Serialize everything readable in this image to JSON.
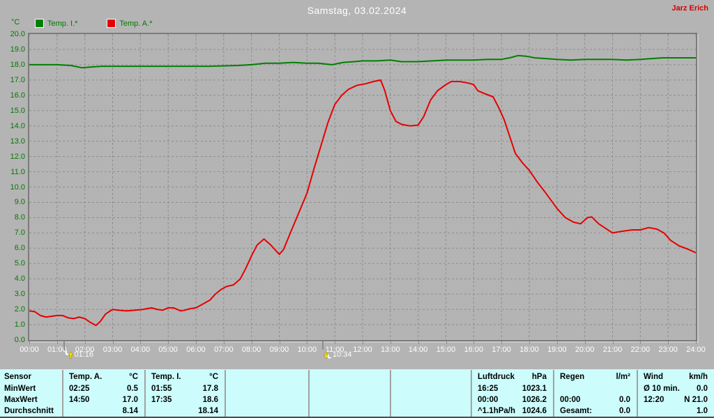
{
  "header": {
    "watermark": "Jarz Erich"
  },
  "chart_data": {
    "type": "line",
    "title": "Samstag, 03.02.2024",
    "xlabel": "",
    "ylabel": "°C",
    "ylim": [
      0,
      20
    ],
    "xlim_hours": [
      0,
      24
    ],
    "grid": "dashed",
    "legend_position": "top-left",
    "y_ticks": [
      "20.0",
      "19.0",
      "18.0",
      "17.0",
      "16.0",
      "15.0",
      "14.0",
      "13.0",
      "12.0",
      "11.0",
      "10.0",
      "9.0",
      "8.0",
      "7.0",
      "6.0",
      "5.0",
      "4.0",
      "3.0",
      "2.0",
      "1.0",
      "0.0"
    ],
    "x_ticks": [
      "00:00",
      "01:00",
      "02:00",
      "03:00",
      "04:00",
      "05:00",
      "06:00",
      "07:00",
      "08:00",
      "09:00",
      "10:00",
      "11:00",
      "12:00",
      "13:00",
      "14:00",
      "15:00",
      "16:00",
      "17:00",
      "18:00",
      "19:00",
      "20:00",
      "21:00",
      "22:00",
      "23:00",
      "24:00"
    ],
    "series": [
      {
        "name": "Temp. I.*",
        "color": "#008000",
        "points": [
          [
            0,
            18.0
          ],
          [
            0.5,
            18.0
          ],
          [
            1.0,
            18.0
          ],
          [
            1.5,
            17.95
          ],
          [
            1.9,
            17.8
          ],
          [
            2.2,
            17.85
          ],
          [
            2.6,
            17.9
          ],
          [
            3.5,
            17.9
          ],
          [
            4.5,
            17.9
          ],
          [
            5.5,
            17.9
          ],
          [
            6.5,
            17.9
          ],
          [
            7.5,
            17.95
          ],
          [
            8.0,
            18.0
          ],
          [
            8.5,
            18.1
          ],
          [
            9.0,
            18.1
          ],
          [
            9.5,
            18.15
          ],
          [
            10.0,
            18.1
          ],
          [
            10.4,
            18.1
          ],
          [
            10.9,
            18.0
          ],
          [
            11.3,
            18.15
          ],
          [
            11.7,
            18.2
          ],
          [
            12.0,
            18.25
          ],
          [
            12.5,
            18.25
          ],
          [
            13.0,
            18.3
          ],
          [
            13.4,
            18.2
          ],
          [
            14.0,
            18.2
          ],
          [
            14.5,
            18.25
          ],
          [
            15.0,
            18.3
          ],
          [
            15.5,
            18.3
          ],
          [
            16.0,
            18.3
          ],
          [
            16.5,
            18.35
          ],
          [
            17.0,
            18.35
          ],
          [
            17.3,
            18.45
          ],
          [
            17.6,
            18.6
          ],
          [
            17.9,
            18.55
          ],
          [
            18.2,
            18.45
          ],
          [
            18.6,
            18.4
          ],
          [
            19.0,
            18.35
          ],
          [
            19.5,
            18.3
          ],
          [
            20.0,
            18.35
          ],
          [
            20.5,
            18.35
          ],
          [
            21.0,
            18.35
          ],
          [
            21.5,
            18.3
          ],
          [
            22.0,
            18.35
          ],
          [
            22.4,
            18.4
          ],
          [
            22.8,
            18.45
          ],
          [
            23.2,
            18.45
          ],
          [
            23.6,
            18.45
          ],
          [
            24.0,
            18.45
          ]
        ]
      },
      {
        "name": "Temp. A.*",
        "color": "#e60000",
        "points": [
          [
            0,
            1.9
          ],
          [
            0.2,
            1.85
          ],
          [
            0.4,
            1.6
          ],
          [
            0.6,
            1.5
          ],
          [
            0.8,
            1.55
          ],
          [
            1.0,
            1.6
          ],
          [
            1.2,
            1.6
          ],
          [
            1.4,
            1.45
          ],
          [
            1.6,
            1.4
          ],
          [
            1.8,
            1.5
          ],
          [
            2.0,
            1.4
          ],
          [
            2.2,
            1.15
          ],
          [
            2.4,
            0.95
          ],
          [
            2.55,
            1.2
          ],
          [
            2.75,
            1.7
          ],
          [
            3.0,
            2.0
          ],
          [
            3.2,
            1.95
          ],
          [
            3.5,
            1.9
          ],
          [
            3.8,
            1.95
          ],
          [
            4.1,
            2.0
          ],
          [
            4.4,
            2.1
          ],
          [
            4.6,
            2.0
          ],
          [
            4.8,
            1.95
          ],
          [
            5.0,
            2.1
          ],
          [
            5.2,
            2.1
          ],
          [
            5.45,
            1.9
          ],
          [
            5.6,
            1.95
          ],
          [
            5.8,
            2.05
          ],
          [
            6.0,
            2.1
          ],
          [
            6.2,
            2.3
          ],
          [
            6.5,
            2.6
          ],
          [
            6.7,
            3.0
          ],
          [
            6.9,
            3.3
          ],
          [
            7.1,
            3.5
          ],
          [
            7.35,
            3.6
          ],
          [
            7.6,
            4.0
          ],
          [
            7.8,
            4.7
          ],
          [
            8.0,
            5.5
          ],
          [
            8.2,
            6.2
          ],
          [
            8.45,
            6.6
          ],
          [
            8.7,
            6.2
          ],
          [
            9.0,
            5.6
          ],
          [
            9.15,
            5.9
          ],
          [
            9.4,
            7.0
          ],
          [
            9.7,
            8.3
          ],
          [
            10.0,
            9.6
          ],
          [
            10.25,
            11.2
          ],
          [
            10.5,
            12.7
          ],
          [
            10.75,
            14.2
          ],
          [
            11.0,
            15.4
          ],
          [
            11.25,
            16.0
          ],
          [
            11.5,
            16.4
          ],
          [
            11.8,
            16.65
          ],
          [
            12.1,
            16.75
          ],
          [
            12.4,
            16.9
          ],
          [
            12.65,
            17.0
          ],
          [
            12.8,
            16.3
          ],
          [
            13.0,
            15.0
          ],
          [
            13.2,
            14.3
          ],
          [
            13.4,
            14.1
          ],
          [
            13.7,
            14.0
          ],
          [
            14.0,
            14.05
          ],
          [
            14.2,
            14.6
          ],
          [
            14.45,
            15.7
          ],
          [
            14.7,
            16.3
          ],
          [
            15.0,
            16.7
          ],
          [
            15.2,
            16.9
          ],
          [
            15.5,
            16.9
          ],
          [
            15.8,
            16.8
          ],
          [
            16.0,
            16.7
          ],
          [
            16.15,
            16.3
          ],
          [
            16.4,
            16.1
          ],
          [
            16.7,
            15.9
          ],
          [
            16.9,
            15.2
          ],
          [
            17.1,
            14.4
          ],
          [
            17.3,
            13.3
          ],
          [
            17.5,
            12.2
          ],
          [
            17.75,
            11.6
          ],
          [
            18.0,
            11.1
          ],
          [
            18.3,
            10.3
          ],
          [
            18.6,
            9.6
          ],
          [
            19.0,
            8.6
          ],
          [
            19.3,
            8.0
          ],
          [
            19.6,
            7.7
          ],
          [
            19.85,
            7.6
          ],
          [
            20.1,
            8.0
          ],
          [
            20.25,
            8.05
          ],
          [
            20.5,
            7.6
          ],
          [
            20.75,
            7.3
          ],
          [
            21.0,
            7.0
          ],
          [
            21.3,
            7.1
          ],
          [
            21.7,
            7.2
          ],
          [
            22.0,
            7.2
          ],
          [
            22.3,
            7.35
          ],
          [
            22.6,
            7.25
          ],
          [
            22.85,
            7.0
          ],
          [
            23.1,
            6.5
          ],
          [
            23.4,
            6.15
          ],
          [
            23.7,
            5.95
          ],
          [
            24.0,
            5.7
          ]
        ]
      }
    ],
    "markers": [
      {
        "time": "01:16",
        "hours": 1.267,
        "icon": "moon-rise"
      },
      {
        "time": "10:34",
        "hours": 10.567,
        "icon": "moon-set"
      }
    ]
  },
  "table": {
    "row_labels": [
      "Sensor",
      "MinWert",
      "MaxWert",
      "Durchschnitt"
    ],
    "columns": [
      {
        "name": "temp-a",
        "header": {
          "label": "Temp. A.",
          "unit": "°C"
        },
        "rows": [
          [
            "02:25",
            "0.5"
          ],
          [
            "14:50",
            "17.0"
          ],
          [
            "",
            "8.14"
          ]
        ]
      },
      {
        "name": "temp-i",
        "header": {
          "label": "Temp. I.",
          "unit": "°C"
        },
        "rows": [
          [
            "01:55",
            "17.8"
          ],
          [
            "17:35",
            "18.6"
          ],
          [
            "",
            "18.14"
          ]
        ]
      },
      {
        "name": "empty-1"
      },
      {
        "name": "empty-2"
      },
      {
        "name": "empty-3"
      },
      {
        "name": "luftdruck",
        "header": {
          "label": "Luftdruck",
          "unit": "hPa"
        },
        "rows": [
          [
            "16:25",
            "1023.1"
          ],
          [
            "00:00",
            "1026.2"
          ],
          [
            "^1.1hPa/h",
            "1024.6"
          ]
        ]
      },
      {
        "name": "regen",
        "header": {
          "label": "Regen",
          "unit": "l/m²"
        },
        "rows": [
          [
            "",
            ""
          ],
          [
            "00:00",
            "0.0"
          ],
          [
            "Gesamt:",
            "0.0"
          ]
        ]
      },
      {
        "name": "wind",
        "header": {
          "label": "Wind",
          "unit": "km/h"
        },
        "rows": [
          [
            "Ø 10 min.",
            "0.0"
          ],
          [
            "12:20",
            "N 21.0"
          ],
          [
            "",
            "1.0"
          ]
        ]
      }
    ]
  }
}
